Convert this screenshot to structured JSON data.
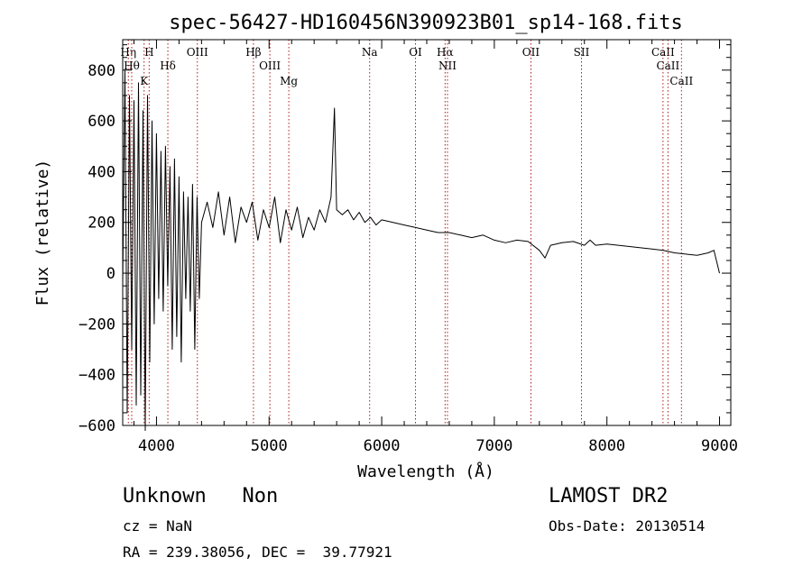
{
  "chart_data": {
    "type": "line",
    "title": "spec-56427-HD160456N390923B01_sp14-168.fits",
    "xlabel": "Wavelength (Å)",
    "ylabel": "Flux (relative)",
    "xlim": [
      3700,
      9100
    ],
    "ylim": [
      -600,
      920
    ],
    "x_ticks": [
      4000,
      5000,
      6000,
      7000,
      8000,
      9000
    ],
    "y_ticks": [
      -600,
      -400,
      -200,
      0,
      200,
      400,
      600,
      800
    ],
    "grid": false,
    "series": [
      {
        "x": [
          3700,
          3720,
          3740,
          3760,
          3780,
          3800,
          3820,
          3840,
          3860,
          3880,
          3900,
          3920,
          3940,
          3960,
          3980,
          4000,
          4020,
          4040,
          4060,
          4080,
          4100,
          4120,
          4140,
          4160,
          4180,
          4200,
          4220,
          4240,
          4260,
          4280,
          4300,
          4320,
          4340,
          4360,
          4380,
          4400,
          4450,
          4500,
          4550,
          4600,
          4650,
          4700,
          4750,
          4800,
          4850,
          4900,
          4950,
          5000,
          5050,
          5100,
          5150,
          5200,
          5250,
          5300,
          5350,
          5400,
          5450,
          5500,
          5550,
          5580,
          5600,
          5650,
          5700,
          5750,
          5800,
          5850,
          5900,
          5950,
          6000,
          6100,
          6200,
          6300,
          6400,
          6500,
          6600,
          6700,
          6800,
          6900,
          7000,
          7100,
          7200,
          7300,
          7400,
          7450,
          7500,
          7600,
          7700,
          7800,
          7850,
          7900,
          8000,
          8100,
          8200,
          8300,
          8400,
          8500,
          8600,
          8700,
          8800,
          8900,
          8950,
          9000
        ],
        "y": [
          -50,
          800,
          -550,
          700,
          -300,
          680,
          -520,
          750,
          -480,
          640,
          -620,
          700,
          -350,
          600,
          -200,
          550,
          -100,
          480,
          -150,
          500,
          -50,
          420,
          -300,
          450,
          -250,
          380,
          -350,
          320,
          -100,
          300,
          -150,
          350,
          -300,
          300,
          -100,
          200,
          280,
          180,
          320,
          150,
          300,
          120,
          260,
          200,
          280,
          130,
          250,
          180,
          300,
          120,
          250,
          170,
          260,
          140,
          220,
          170,
          250,
          200,
          300,
          650,
          250,
          230,
          250,
          210,
          240,
          200,
          220,
          190,
          210,
          200,
          190,
          180,
          170,
          160,
          160,
          150,
          140,
          150,
          130,
          120,
          130,
          125,
          90,
          60,
          110,
          120,
          125,
          110,
          130,
          110,
          115,
          110,
          105,
          100,
          95,
          90,
          80,
          75,
          70,
          80,
          90,
          0
        ]
      }
    ],
    "line_markers": [
      {
        "x": 3750,
        "label": "Hη"
      },
      {
        "x": 3780,
        "label": "Hθ"
      },
      {
        "x": 3890,
        "label": "K"
      },
      {
        "x": 3935,
        "label": "H"
      },
      {
        "x": 4101,
        "label": "Hδ"
      },
      {
        "x": 4363,
        "label": "OIII"
      },
      {
        "x": 4861,
        "label": "Hβ"
      },
      {
        "x": 5007,
        "label": "OIII"
      },
      {
        "x": 5175,
        "label": "Mg"
      },
      {
        "x": 5893,
        "label": "Na"
      },
      {
        "x": 6300,
        "label": "OI"
      },
      {
        "x": 6563,
        "label": "Hα"
      },
      {
        "x": 6584,
        "label": "NII"
      },
      {
        "x": 7325,
        "label": "OII"
      },
      {
        "x": 7774,
        "label": "SII"
      },
      {
        "x": 8498,
        "label": "CaII"
      },
      {
        "x": 8542,
        "label": "CaII"
      },
      {
        "x": 8662,
        "label": "CaII"
      }
    ],
    "marker_color": "#b01818",
    "line_color": "#000000"
  },
  "info": {
    "class_line": "Unknown   Non",
    "cz": "cz = NaN",
    "radec": "RA = 239.38056, DEC =  39.77921",
    "survey": "LAMOST DR2",
    "obsdate": "Obs-Date: 20130514"
  }
}
